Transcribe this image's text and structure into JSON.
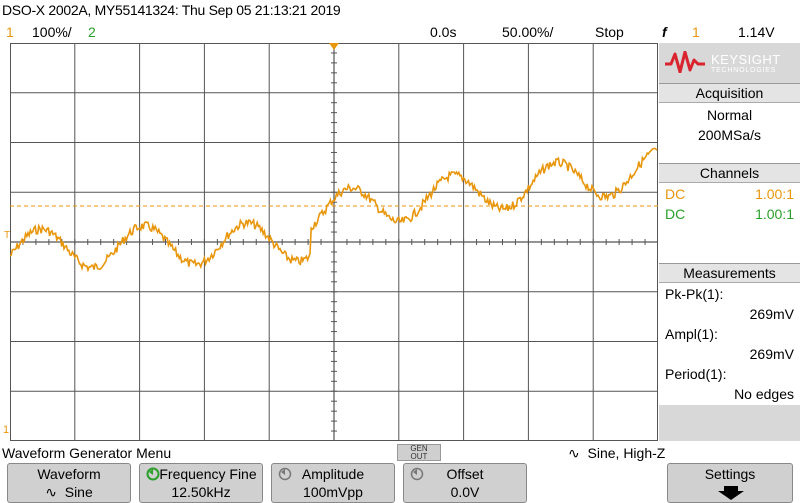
{
  "header": {
    "title": "DSO-X 2002A, MY55141324: Thu Sep 05 21:13:21 2019",
    "ch1_label": "1",
    "ch1_scale": "100%/",
    "ch2_label": "2",
    "time_offset": "0.0s",
    "time_scale": "50.00%/",
    "run_state": "Stop",
    "trigger_icon": "f",
    "trigger_source": "1",
    "trigger_level": "1.14V"
  },
  "colors": {
    "ch1": "#e8960c",
    "ch2": "#2aa02a",
    "grid": "#555555",
    "keysight_red": "#d9232e"
  },
  "brand": {
    "name": "KEYSIGHT",
    "sub": "TECHNOLOGIES"
  },
  "acquisition": {
    "title": "Acquisition",
    "mode": "Normal",
    "rate": "200MSa/s"
  },
  "channels": {
    "title": "Channels",
    "rows": [
      {
        "coupling": "DC",
        "ratio": "1.00:1"
      },
      {
        "coupling": "DC",
        "ratio": "1.00:1"
      }
    ]
  },
  "measurements": {
    "title": "Measurements",
    "items": [
      {
        "label": "Pk-Pk(1):",
        "value": "269mV"
      },
      {
        "label": "Ampl(1):",
        "value": "269mV"
      },
      {
        "label": "Period(1):",
        "value": "No edges"
      }
    ]
  },
  "status": {
    "menu": "Waveform Generator Menu",
    "gen_out_line1": "GEN",
    "gen_out_line2": "OUT",
    "waveform_info": "Sine, High-Z"
  },
  "softkeys": [
    {
      "title": "Waveform",
      "value": "Sine"
    },
    {
      "title": "Frequency Fine",
      "value": "12.50kHz"
    },
    {
      "title": "Amplitude",
      "value": "100mVpp"
    },
    {
      "title": "Offset",
      "value": "0.0V"
    },
    {
      "title": "Settings",
      "value": ""
    }
  ],
  "markers": {
    "trigger_marker": "T",
    "ground_marker": "1"
  }
}
